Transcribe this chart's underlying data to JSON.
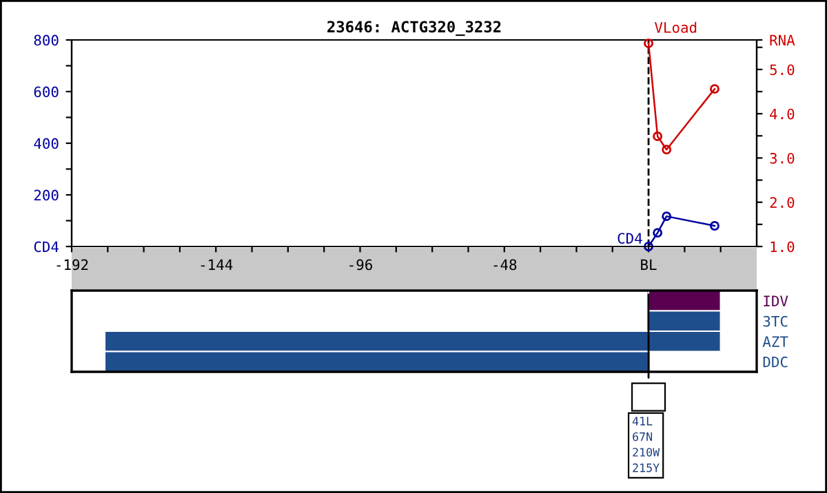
{
  "chart_data": [
    {
      "type": "line",
      "title": "23646: ACTG320_3232",
      "xlim": [
        -192,
        36
      ],
      "xticks": [
        -192,
        {
          "value": -180,
          "label": null
        },
        {
          "value": -168,
          "label": null
        },
        {
          "value": -156,
          "label": null
        },
        -144,
        {
          "value": -132,
          "label": null
        },
        {
          "value": -120,
          "label": null
        },
        {
          "value": -108,
          "label": null
        },
        -96,
        {
          "value": -84,
          "label": null
        },
        {
          "value": -72,
          "label": null
        },
        {
          "value": -60,
          "label": null
        },
        -48,
        {
          "value": -36,
          "label": null
        },
        {
          "value": -24,
          "label": null
        },
        {
          "value": -12,
          "label": null
        },
        {
          "value": 0,
          "label": "BL"
        },
        {
          "value": 12,
          "label": null
        },
        {
          "value": 24,
          "label": null
        }
      ],
      "ylim": [
        0,
        800
      ],
      "yticks": [
        {
          "value": 0,
          "label": "CD4"
        },
        {
          "value": 100,
          "label": null
        },
        200,
        {
          "value": 300,
          "label": null
        },
        400,
        {
          "value": 500,
          "label": null
        },
        600,
        {
          "value": 700,
          "label": null
        },
        800
      ],
      "y2lim": [
        1,
        5.667
      ],
      "y2ticks": [
        {
          "value": 1,
          "label": "1.0"
        },
        {
          "value": 1.5,
          "label": null
        },
        {
          "value": 2,
          "label": "2.0"
        },
        {
          "value": 2.5,
          "label": null
        },
        {
          "value": 3,
          "label": "3.0"
        },
        {
          "value": 3.5,
          "label": null
        },
        {
          "value": 4,
          "label": "4.0"
        },
        {
          "value": 4.5,
          "label": null
        },
        {
          "value": 5,
          "label": "5.0"
        },
        {
          "value": 5.5,
          "label": null
        },
        {
          "value": 5.667,
          "label": "RNA"
        }
      ],
      "series": [
        {
          "name": "CD4",
          "color": "#0000a0",
          "x": [
            0,
            3,
            6,
            22
          ],
          "values": [
            0,
            53,
            117,
            80
          ]
        },
        {
          "name": "VLoad",
          "color": "#d00000",
          "axis": "y2",
          "x": [
            0,
            3,
            6,
            22
          ],
          "values": [
            5.59,
            3.49,
            3.19,
            4.56
          ]
        }
      ],
      "ref_lines": [
        {
          "axis": "x",
          "value": 0,
          "line_style": "dashed",
          "color": "#000000"
        }
      ],
      "marker": "circle",
      "grid": false,
      "legend": false
    },
    {
      "type": "bar",
      "orientation": "horizontal",
      "categories": [
        "IDV",
        "3TC",
        "AZT",
        "DDC"
      ],
      "base": [
        0,
        0,
        -181,
        -181
      ],
      "values": [
        24,
        24,
        205,
        181
      ],
      "colors": [
        "#5a0050",
        "#1f4e8c",
        "#1f4e8c",
        "#1f4e8c"
      ],
      "xlim": [
        -192,
        36
      ],
      "tick_labels": "y",
      "ref_lines": [
        {
          "axis": "x",
          "value": 0,
          "color": "#000000",
          "line_style": "solid"
        }
      ],
      "annotations": [
        "41L\n67N\n210W\n215Y"
      ]
    }
  ]
}
